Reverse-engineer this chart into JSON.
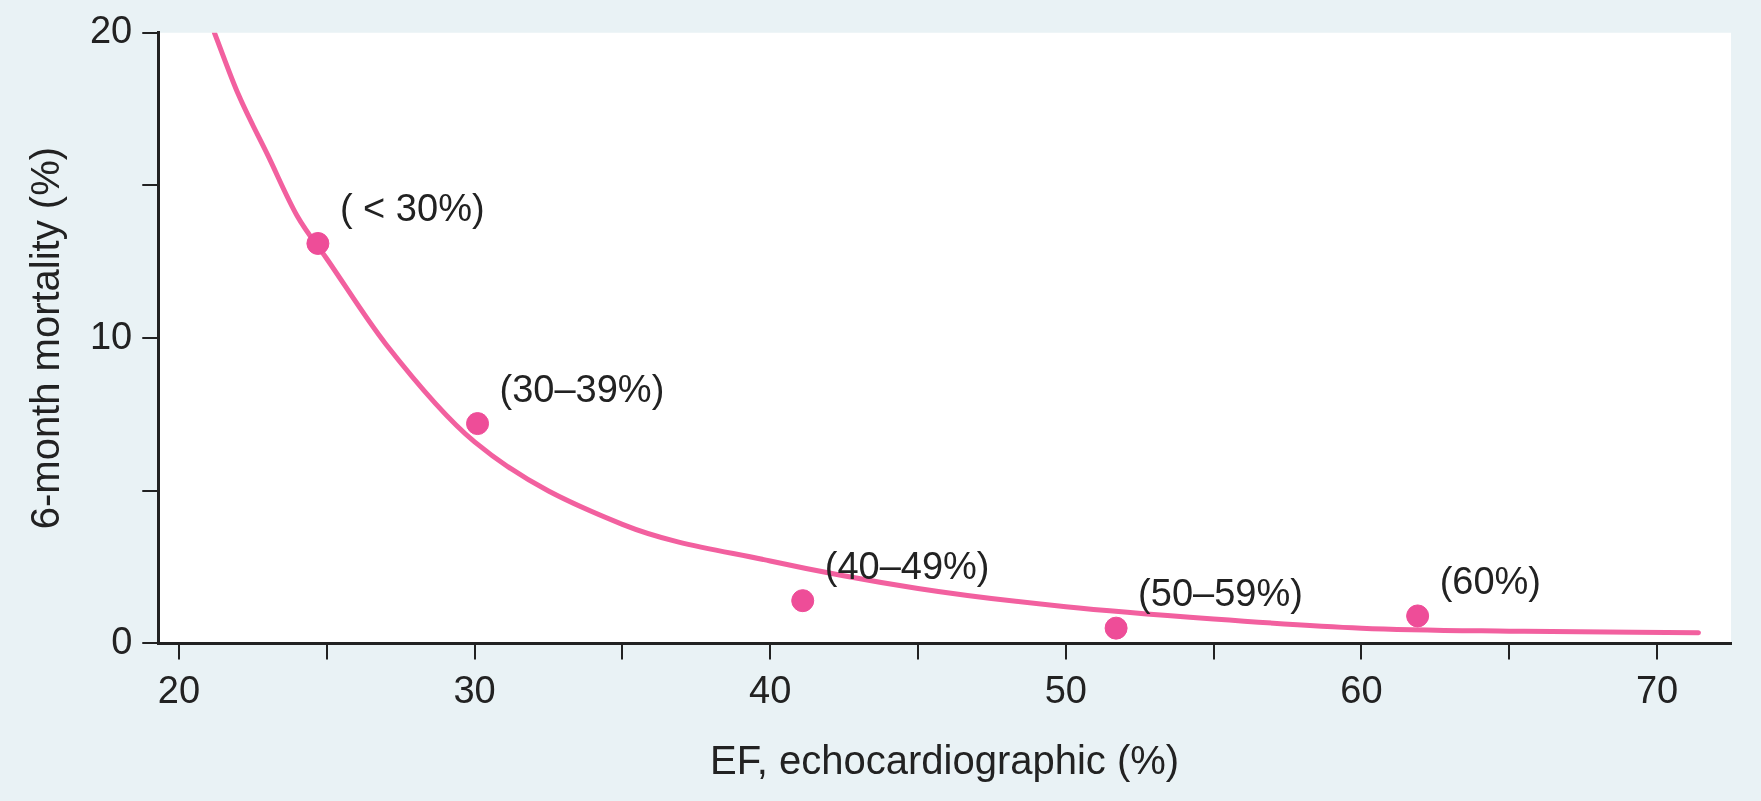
{
  "chart_data": {
    "type": "scatter",
    "xlabel": "EF, echocardiographic (%)",
    "ylabel": "6-month mortality (%)",
    "xlim": [
      19.3,
      72.5
    ],
    "ylim": [
      0,
      20
    ],
    "xticks": [
      20,
      {
        "value": 25,
        "label": null
      },
      30,
      {
        "value": 35,
        "label": null
      },
      40,
      {
        "value": 45,
        "label": null
      },
      50,
      {
        "value": 55,
        "label": null
      },
      60,
      {
        "value": 65,
        "label": null
      },
      70
    ],
    "yticks": [
      0,
      {
        "value": 5,
        "label": null
      },
      10,
      {
        "value": 15,
        "label": null
      },
      20
    ],
    "grid": false,
    "legend": false,
    "marker": "circle",
    "series": [
      {
        "type": "scatter",
        "color": "#ee4d98",
        "x": [
          24.7,
          30.1,
          41.1,
          51.7,
          61.9
        ],
        "values": [
          13.1,
          7.2,
          1.4,
          0.5,
          0.9
        ]
      },
      {
        "type": "line",
        "color": "#f2609f",
        "marker": "none",
        "x": [
          21.2,
          22,
          23,
          24,
          25,
          27,
          30,
          35,
          40,
          45,
          50,
          55,
          60,
          65,
          71.4
        ],
        "values": [
          20,
          18,
          16,
          14,
          12.6,
          9.8,
          6.6,
          3.9,
          2.7,
          1.8,
          1.2,
          0.8,
          0.5,
          0.4,
          0.35
        ]
      }
    ],
    "annotations": [
      {
        "text": "( < 30%)",
        "x": 24.7,
        "y": 13.1
      },
      {
        "text": "(30–39%)",
        "x": 30.1,
        "y": 7.2
      },
      {
        "text": "(40–49%)",
        "x": 41.1,
        "y": 1.4
      },
      {
        "text": "(50–59%)",
        "x": 51.7,
        "y": 0.5
      },
      {
        "text": "(60%)",
        "x": 61.9,
        "y": 0.9
      }
    ]
  }
}
